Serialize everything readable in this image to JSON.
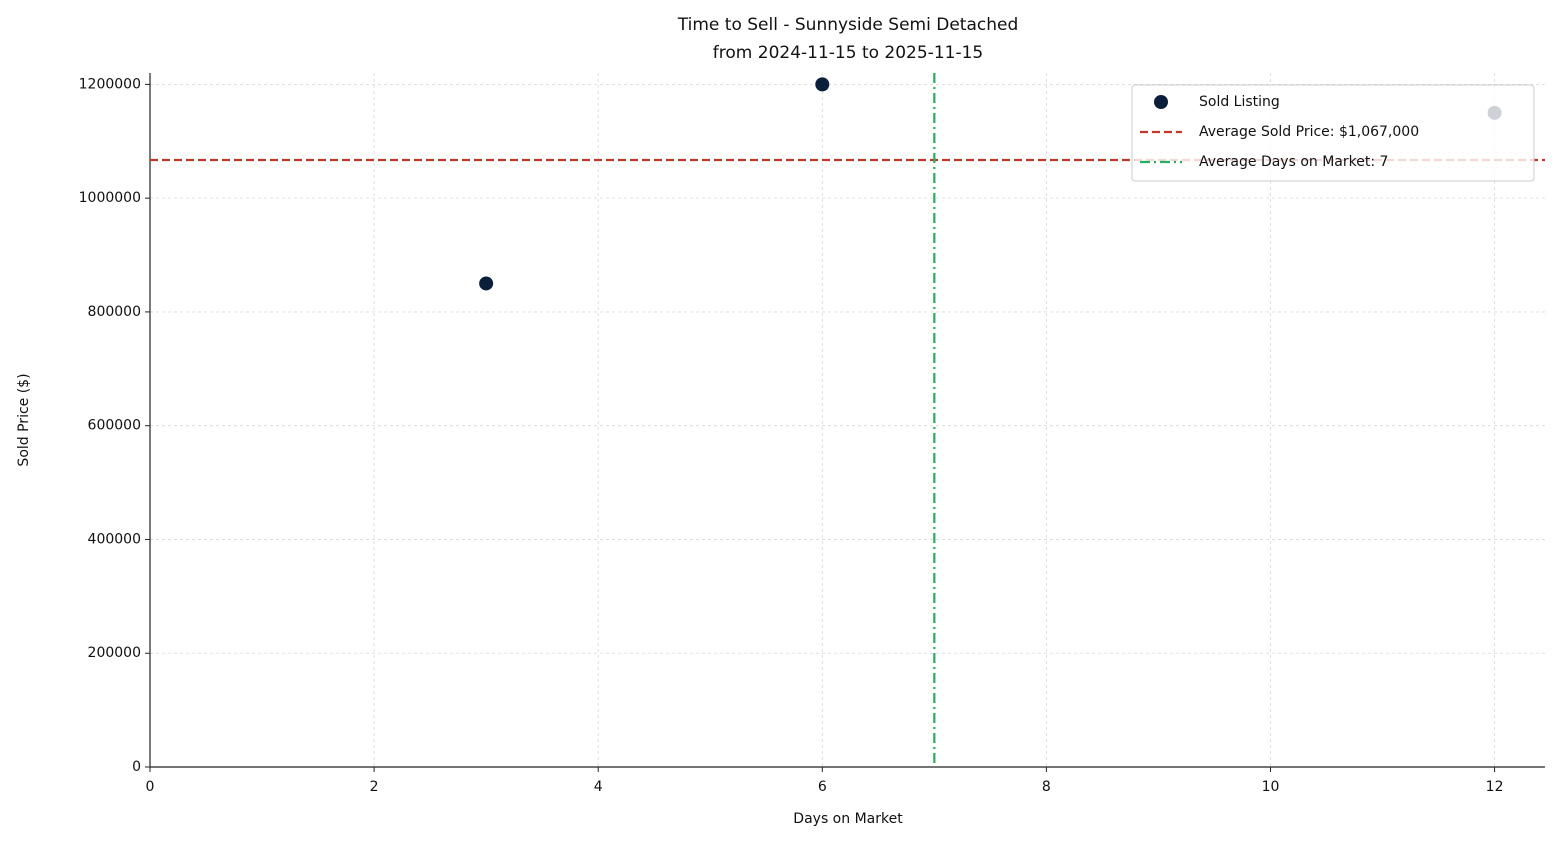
{
  "chart_data": {
    "type": "scatter",
    "title": "Time to Sell - Sunnyside Semi Detached",
    "subtitle": "from 2024-11-15 to 2025-11-15",
    "x_label": "Days on Market",
    "y_label": "Sold Price ($)",
    "series": [
      {
        "name": "Sold Listing",
        "color": "#0b1f3a",
        "x": [
          3,
          6,
          12
        ],
        "values": [
          850000,
          1200000,
          1150000
        ]
      }
    ],
    "reference_lines": [
      {
        "name": "Average Sold Price: $1,067,000",
        "orientation": "horizontal",
        "value": 1067000,
        "color": "#c0392b",
        "style": "dashed"
      },
      {
        "name": "Average Days on Market: 7",
        "orientation": "vertical",
        "value": 7,
        "color": "#27ae60",
        "style": "dashdot"
      }
    ],
    "xlim": [
      0,
      12.45
    ],
    "xticks": [
      0,
      2,
      4,
      6,
      8,
      10,
      12
    ],
    "ylim": [
      0,
      1220000
    ],
    "yticks": [
      0,
      200000,
      400000,
      600000,
      800000,
      1000000,
      1200000
    ],
    "grid": true,
    "legend": "upper right"
  }
}
